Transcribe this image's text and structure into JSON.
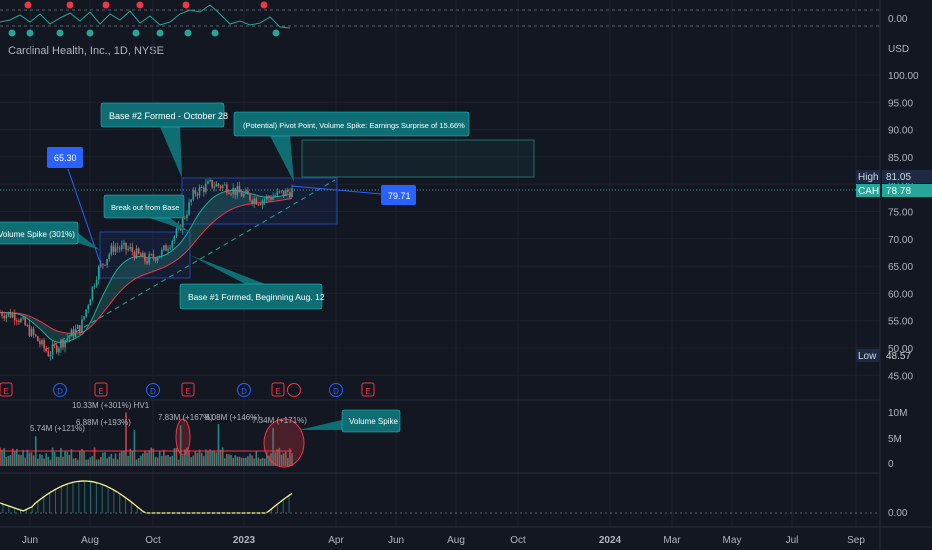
{
  "header": {
    "ticker": "Cardinal Health, Inc., 1D, NYSE"
  },
  "colors": {
    "background": "#131722",
    "up": "#26a69a",
    "down": "#ef5350",
    "ema_fast": "#22ab94",
    "ema_slow": "#f23645",
    "annotation_fill": "#0e6e73",
    "blue_callout": "#2962ff",
    "high_badge": "#1e2a44",
    "current_badge": "#26a69a"
  },
  "price_scale": {
    "currency": "USD",
    "ticks": [
      "100.00",
      "95.00",
      "90.00",
      "85.00",
      "80.00",
      "75.00",
      "70.00",
      "65.00",
      "60.00",
      "55.00",
      "50.00",
      "45.00"
    ],
    "high_label": "High",
    "high_value": "81.05",
    "current_label": "CAH",
    "current_value": "78.78",
    "low_label": "Low",
    "low_value": "48.57",
    "top_indicator_value": "0.00",
    "volume_ticks": [
      "10M",
      "5M",
      "0"
    ],
    "bottom_indicator_value": "0.00"
  },
  "time_axis": [
    "Jun",
    "Aug",
    "Oct",
    "2023",
    "Apr",
    "Jun",
    "Aug",
    "Oct",
    "2024",
    "Mar",
    "May",
    "Jul",
    "Sep"
  ],
  "annotations": {
    "base2": "Base #2 Formed - October 28",
    "pivot": "(Potential) Pivot Point, Volume Spike: Earnings Surprise of 15.66%",
    "price_6530": "65.30",
    "breakout": "Break out from Base",
    "volume_spike_left": "Volume Spike (301%)",
    "base1": "Base #1 Formed, Beginning Aug. 12",
    "price_7971": "79.71",
    "volume_spike_right": "Volume Spike"
  },
  "events": [
    "E",
    "D",
    "E",
    "D",
    "E",
    "D",
    "E",
    "D",
    "E",
    "D",
    "E"
  ],
  "volume_labels": [
    "5.74M (+121%)",
    "10.33M (+301%) HV1",
    "6.88M (+193%)",
    "7.83M (+167%)",
    "8.08M (+146%)",
    "7.34M (+171%)"
  ],
  "chart_data": {
    "type": "line",
    "title": "Cardinal Health, Inc., 1D, NYSE",
    "x": [
      "2022-05-15",
      "2022-06-01",
      "2022-06-15",
      "2022-07-01",
      "2022-07-15",
      "2022-08-01",
      "2022-08-12",
      "2022-09-01",
      "2022-09-15",
      "2022-10-01",
      "2022-10-15",
      "2022-10-28",
      "2022-11-15",
      "2022-12-01",
      "2022-12-15",
      "2023-01-01",
      "2023-01-15",
      "2023-02-01",
      "2023-02-15"
    ],
    "series": [
      {
        "values": [
          56.5,
          56.0,
          52.5,
          49.0,
          51.5,
          54.0,
          64.0,
          68.5,
          68.0,
          66.0,
          67.5,
          71.5,
          78.5,
          80.0,
          79.5,
          78.0,
          77.0,
          78.0,
          78.78
        ]
      }
    ],
    "ylim": [
      43,
      103
    ],
    "high": 81.05,
    "low": 48.57,
    "last": 78.78,
    "volume_spikes_M": [
      5.74,
      10.33,
      6.88,
      7.83,
      8.08,
      7.34
    ]
  }
}
